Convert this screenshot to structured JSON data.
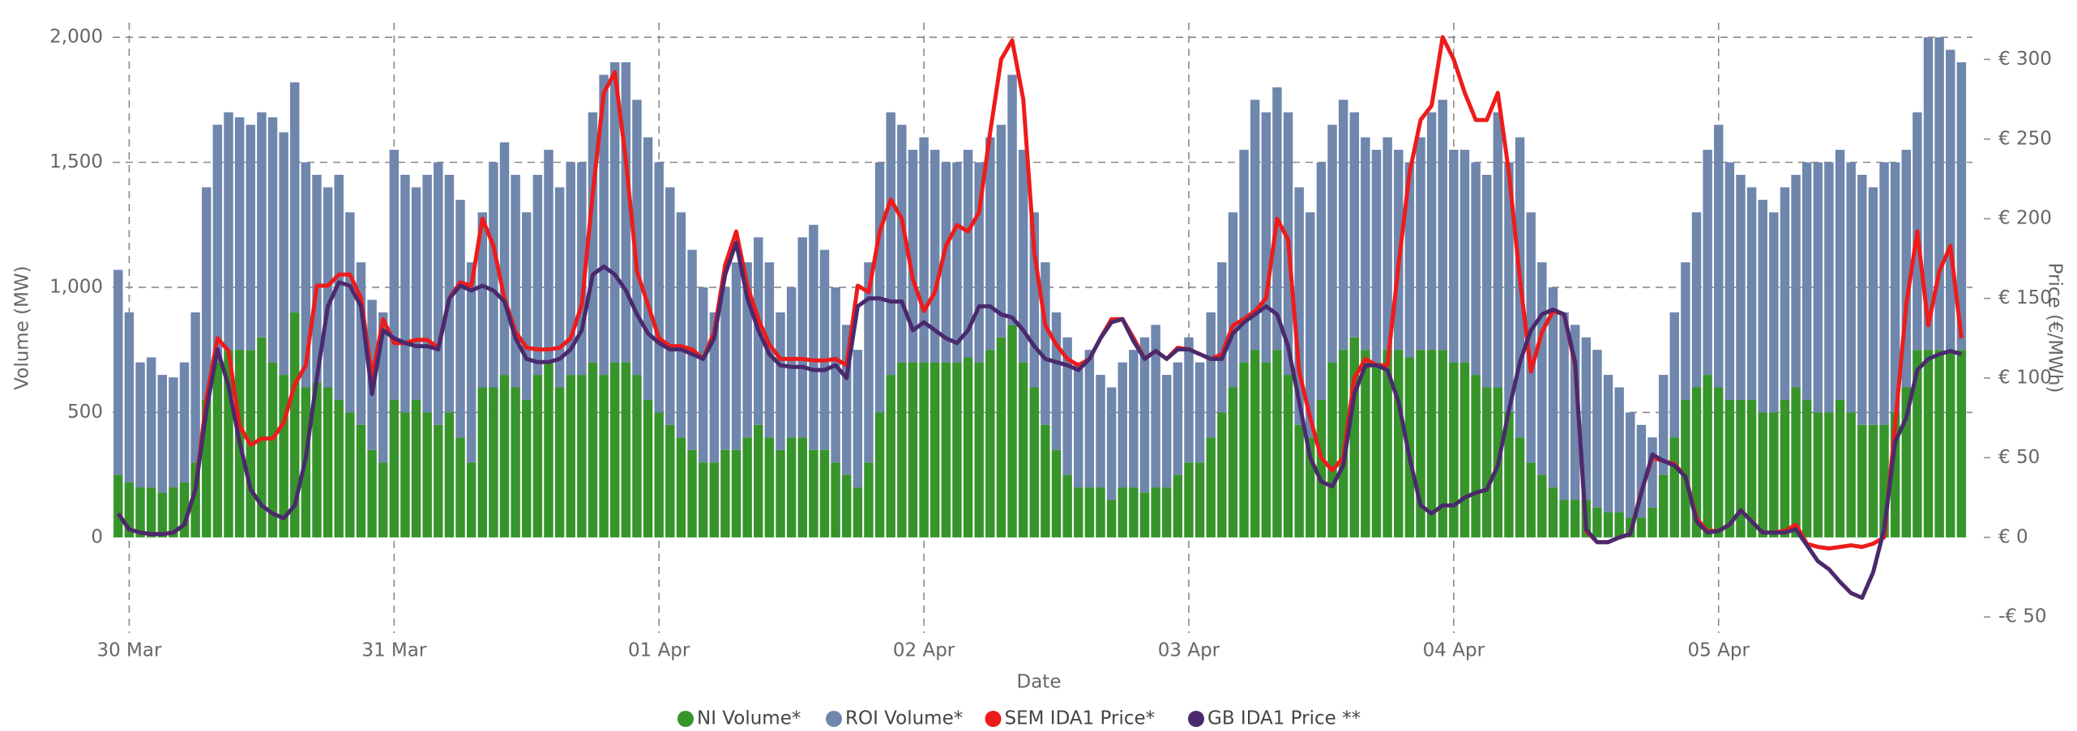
{
  "chart_data": {
    "type": "bar-line",
    "x_label": "Date",
    "y_label": "Volume (MW)",
    "y2_label": "Price (€/MWh)",
    "x": [
      -1,
      0,
      1,
      2,
      3,
      4,
      5,
      6,
      7,
      8,
      9,
      10,
      11,
      12,
      13,
      14,
      15,
      16,
      17,
      18,
      19,
      20,
      21,
      22,
      23,
      24,
      25,
      26,
      27,
      28,
      29,
      30,
      31,
      32,
      33,
      34,
      35,
      36,
      37,
      38,
      39,
      40,
      41,
      42,
      43,
      44,
      45,
      46,
      47,
      48,
      49,
      50,
      51,
      52,
      53,
      54,
      55,
      56,
      57,
      58,
      59,
      60,
      61,
      62,
      63,
      64,
      65,
      66,
      67,
      68,
      69,
      70,
      71,
      72,
      73,
      74,
      75,
      76,
      77,
      78,
      79,
      80,
      81,
      82,
      83,
      84,
      85,
      86,
      87,
      88,
      89,
      90,
      91,
      92,
      93,
      94,
      95,
      96,
      97,
      98,
      99,
      100,
      101,
      102,
      103,
      104,
      105,
      106,
      107,
      108,
      109,
      110,
      111,
      112,
      113,
      114,
      115,
      116,
      117,
      118,
      119,
      120,
      121,
      122,
      123,
      124,
      125,
      126,
      127,
      128,
      129,
      130,
      131,
      132,
      133,
      134,
      135,
      136,
      137,
      138,
      139,
      140,
      141,
      142,
      143,
      144,
      145,
      146,
      147,
      148,
      149,
      150,
      151,
      152,
      153,
      154,
      155,
      156,
      157,
      158,
      159,
      160,
      161,
      162,
      163,
      164,
      165,
      166
    ],
    "xlim": [
      -1.5,
      167
    ],
    "xticks": [
      {
        "value": 0,
        "label": "30 Mar"
      },
      {
        "value": 24,
        "label": "31 Mar"
      },
      {
        "value": 48,
        "label": "01 Apr"
      },
      {
        "value": 72,
        "label": "02 Apr"
      },
      {
        "value": 96,
        "label": "03 Apr"
      },
      {
        "value": 120,
        "label": "04 Apr"
      },
      {
        "value": 144,
        "label": "05 Apr"
      }
    ],
    "ylim": [
      -350,
      2026
    ],
    "yticks": [
      0,
      500,
      {
        "value": 1000,
        "label": "1,000"
      },
      {
        "value": 1500,
        "label": "1,500"
      },
      {
        "value": 2000,
        "label": "2,000"
      }
    ],
    "y2lim": [
      -55,
      318
    ],
    "y2ticks": [
      {
        "value": -50,
        "label": "-€ 50"
      },
      {
        "value": 0,
        "label": "€ 0"
      },
      {
        "value": 50,
        "label": "€ 50"
      },
      {
        "value": 100,
        "label": "€ 100"
      },
      {
        "value": 150,
        "label": "€ 150"
      },
      {
        "value": 200,
        "label": "€ 200"
      },
      {
        "value": 250,
        "label": "€ 250"
      },
      {
        "value": 300,
        "label": "€ 300"
      }
    ],
    "grid": true,
    "legend": "bottom",
    "series": [
      {
        "name": "NI Volume*",
        "kind": "bar",
        "stack": true,
        "color": "#36942b",
        "values": [
          250,
          220,
          200,
          200,
          180,
          200,
          220,
          300,
          550,
          700,
          750,
          750,
          750,
          800,
          700,
          650,
          900,
          600,
          620,
          600,
          550,
          500,
          450,
          350,
          300,
          550,
          500,
          550,
          500,
          450,
          500,
          400,
          300,
          600,
          600,
          650,
          600,
          550,
          650,
          700,
          600,
          650,
          650,
          700,
          650,
          700,
          700,
          650,
          550,
          500,
          450,
          400,
          350,
          300,
          300,
          350,
          350,
          400,
          450,
          400,
          350,
          400,
          400,
          350,
          350,
          300,
          250,
          200,
          300,
          500,
          650,
          700,
          700,
          700,
          700,
          700,
          700,
          720,
          700,
          750,
          800,
          850,
          700,
          600,
          450,
          350,
          250,
          200,
          200,
          200,
          150,
          200,
          200,
          180,
          200,
          200,
          250,
          300,
          300,
          400,
          500,
          600,
          700,
          750,
          700,
          750,
          650,
          450,
          400,
          550,
          700,
          750,
          800,
          750,
          700,
          750,
          750,
          720,
          750,
          750,
          750,
          700,
          700,
          650,
          600,
          600,
          500,
          400,
          300,
          250,
          200,
          150,
          150,
          150,
          120,
          100,
          100,
          80,
          80,
          120,
          250,
          400,
          550,
          600,
          650,
          600,
          550,
          550,
          550,
          500,
          500,
          550,
          600,
          550,
          500,
          500,
          550,
          500,
          450,
          450,
          450,
          500,
          600,
          750,
          750,
          750,
          750,
          750
        ]
      },
      {
        "name": "ROI Volume*",
        "kind": "bar",
        "stack": true,
        "color": "#6f86ad",
        "values": [
          820,
          680,
          500,
          520,
          470,
          440,
          480,
          600,
          850,
          950,
          950,
          930,
          900,
          900,
          980,
          970,
          920,
          900,
          830,
          800,
          900,
          800,
          650,
          600,
          600,
          1000,
          950,
          850,
          950,
          1050,
          950,
          950,
          800,
          700,
          900,
          930,
          850,
          750,
          800,
          850,
          800,
          850,
          850,
          1000,
          1200,
          1200,
          1200,
          1100,
          1050,
          1000,
          950,
          900,
          800,
          700,
          600,
          650,
          750,
          700,
          750,
          700,
          550,
          600,
          800,
          900,
          800,
          700,
          600,
          550,
          800,
          1000,
          1050,
          950,
          850,
          900,
          850,
          800,
          800,
          830,
          800,
          850,
          850,
          1000,
          850,
          700,
          650,
          550,
          550,
          500,
          550,
          450,
          450,
          500,
          550,
          620,
          650,
          450,
          450,
          500,
          400,
          500,
          600,
          700,
          850,
          1000,
          1000,
          1050,
          1050,
          950,
          900,
          950,
          950,
          1000,
          900,
          850,
          850,
          850,
          800,
          780,
          850,
          950,
          1000,
          850,
          850,
          850,
          850,
          1100,
          1000,
          1200,
          1000,
          850,
          800,
          750,
          700,
          650,
          630,
          550,
          500,
          420,
          370,
          280,
          400,
          500,
          550,
          700,
          900,
          1050,
          950,
          900,
          850,
          850,
          800,
          850,
          850,
          950,
          1000,
          1000,
          1000,
          1000,
          1000,
          950,
          1050,
          1000,
          950,
          950,
          1250,
          1250,
          1200,
          1150
        ]
      },
      {
        "name": "SEM IDA1 Price*",
        "kind": "line",
        "axis": "y2",
        "color": "#ee1b1b",
        "values": [
          15,
          5,
          3,
          2,
          2,
          3,
          8,
          30,
          87,
          125,
          117,
          70,
          58,
          62,
          62,
          72,
          96,
          108,
          158,
          158,
          165,
          165,
          150,
          100,
          137,
          122,
          122,
          124,
          124,
          119,
          150,
          160,
          158,
          200,
          183,
          150,
          129,
          119,
          118,
          118,
          119,
          125,
          146,
          216,
          279,
          292,
          237,
          167,
          146,
          125,
          120,
          120,
          118,
          112,
          129,
          171,
          192,
          158,
          137,
          121,
          112,
          112,
          112,
          111,
          111,
          112,
          108,
          158,
          154,
          192,
          212,
          200,
          162,
          142,
          154,
          183,
          196,
          192,
          204,
          254,
          300,
          312,
          275,
          179,
          133,
          121,
          112,
          108,
          112,
          125,
          137,
          137,
          125,
          112,
          117,
          112,
          119,
          118,
          115,
          112,
          115,
          133,
          137,
          142,
          150,
          200,
          187,
          104,
          75,
          50,
          42,
          50,
          100,
          112,
          108,
          108,
          171,
          229,
          262,
          271,
          314,
          300,
          279,
          262,
          262,
          279,
          229,
          162,
          104,
          129,
          142,
          140,
          108,
          4,
          -3,
          -3,
          0,
          2,
          29,
          50,
          48,
          46,
          38,
          12,
          4,
          4,
          8,
          17,
          10,
          3,
          3,
          4,
          8,
          -4,
          -6,
          -7,
          -6,
          -5,
          -6,
          -4,
          0,
          71,
          146,
          192,
          133,
          167,
          183,
          125
        ]
      },
      {
        "name": "GB IDA1 Price **",
        "kind": "line",
        "axis": "y2",
        "color": "#4a2a6c",
        "values": [
          15,
          5,
          3,
          2,
          2,
          3,
          8,
          30,
          80,
          118,
          95,
          60,
          30,
          20,
          15,
          12,
          20,
          50,
          100,
          145,
          160,
          158,
          145,
          90,
          130,
          125,
          122,
          120,
          120,
          118,
          150,
          158,
          155,
          158,
          155,
          148,
          125,
          112,
          110,
          110,
          112,
          118,
          130,
          165,
          170,
          165,
          155,
          140,
          128,
          122,
          118,
          118,
          115,
          112,
          125,
          165,
          185,
          150,
          130,
          115,
          108,
          107,
          107,
          105,
          105,
          108,
          100,
          145,
          150,
          150,
          148,
          148,
          130,
          135,
          130,
          125,
          122,
          130,
          145,
          145,
          140,
          138,
          130,
          120,
          112,
          110,
          108,
          105,
          112,
          125,
          135,
          137,
          123,
          112,
          117,
          112,
          118,
          118,
          115,
          112,
          112,
          128,
          135,
          140,
          145,
          140,
          120,
          85,
          50,
          35,
          32,
          45,
          90,
          108,
          108,
          105,
          85,
          50,
          20,
          15,
          20,
          20,
          25,
          28,
          30,
          45,
          80,
          110,
          130,
          140,
          143,
          140,
          110,
          5,
          -3,
          -3,
          0,
          2,
          28,
          52,
          48,
          45,
          38,
          10,
          3,
          4,
          8,
          17,
          10,
          3,
          3,
          3,
          5,
          -5,
          -15,
          -20,
          -28,
          -35,
          -38,
          -22,
          5,
          60,
          75,
          105,
          112,
          115,
          117,
          115
        ]
      }
    ]
  }
}
